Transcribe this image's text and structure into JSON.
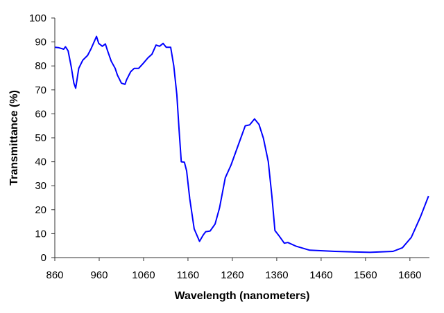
{
  "chart_data": {
    "type": "line",
    "title": "",
    "xlabel": "Wavelength (nanometers)",
    "ylabel": "Transmittance (%)",
    "xlim": [
      860,
      1704
    ],
    "ylim": [
      0,
      100
    ],
    "xticks": [
      860,
      960,
      1060,
      1160,
      1260,
      1360,
      1460,
      1560,
      1660
    ],
    "yticks": [
      0,
      10,
      20,
      30,
      40,
      50,
      60,
      70,
      80,
      90,
      100
    ],
    "grid": false,
    "line_color": "#0000ff",
    "series": [
      {
        "x": [
          860,
          869,
          880,
          884,
          890,
          897,
          903,
          907,
          914,
          923,
          934,
          942,
          949,
          954,
          959,
          967,
          974,
          979,
          987,
          996,
          1001,
          1010,
          1018,
          1022,
          1031,
          1039,
          1049,
          1059,
          1070,
          1079,
          1088,
          1096,
          1104,
          1111,
          1121,
          1128,
          1135,
          1140,
          1145,
          1152,
          1157,
          1164,
          1174,
          1186,
          1195,
          1200,
          1210,
          1221,
          1231,
          1244,
          1257,
          1273,
          1289,
          1299,
          1310,
          1320,
          1330,
          1341,
          1349,
          1356,
          1366,
          1377,
          1385,
          1403,
          1434,
          1491,
          1570,
          1622,
          1643,
          1663,
          1684,
          1702
        ],
        "y": [
          87.8,
          87.6,
          87,
          88,
          86.3,
          79.6,
          72.8,
          70.7,
          79,
          82.4,
          84.4,
          87.3,
          90.2,
          92.3,
          89.4,
          88.2,
          89.2,
          86.3,
          82,
          79,
          76.2,
          72.8,
          72.3,
          74.3,
          77.6,
          79,
          79,
          81,
          83.4,
          84.9,
          88.7,
          88.2,
          89.4,
          87.8,
          87.8,
          80,
          68,
          53.5,
          40,
          39.8,
          36.2,
          24.6,
          12,
          6.8,
          9.6,
          10.8,
          11.1,
          14,
          20.7,
          33.3,
          38.6,
          46.8,
          55,
          55.4,
          57.9,
          55.6,
          49.8,
          40.1,
          25.7,
          11.3,
          8.9,
          6,
          6.3,
          4.8,
          3.1,
          2.6,
          2.2,
          2.6,
          4.1,
          8.4,
          17.1,
          25.7
        ]
      }
    ]
  }
}
